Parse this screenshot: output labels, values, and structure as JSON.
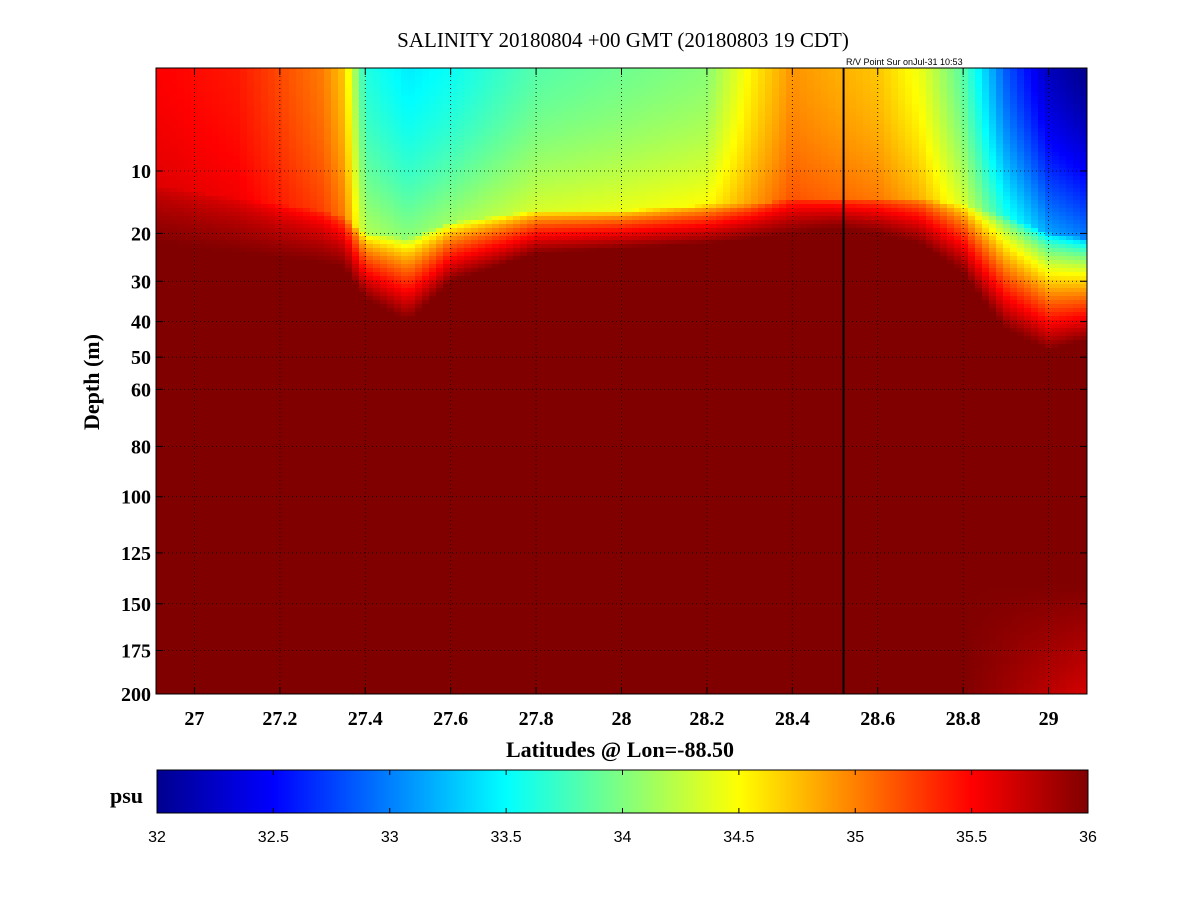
{
  "chart_data": {
    "type": "heatmap",
    "title": "SALINITY 20180804 +00 GMT (20180803 19 CDT)",
    "annotation": "R/V Point Sur onJul-31 10:53",
    "xlabel": "Latitudes @ Lon=-88.50",
    "ylabel": "Depth (m)",
    "xlim": [
      26.91,
      29.09
    ],
    "ylim": [
      200,
      1
    ],
    "y_scale": "sqrt",
    "x_ticks": [
      27,
      27.2,
      27.4,
      27.6,
      27.8,
      28,
      28.2,
      28.4,
      28.6,
      28.8,
      29
    ],
    "x_tick_labels": [
      "27",
      "27.2",
      "27.4",
      "27.6",
      "27.8",
      "28",
      "28.2",
      "28.4",
      "28.6",
      "28.8",
      "29"
    ],
    "y_ticks": [
      10,
      20,
      30,
      40,
      50,
      60,
      80,
      100,
      125,
      150,
      175,
      200
    ],
    "y_tick_labels": [
      "10",
      "20",
      "30",
      "40",
      "50",
      "60",
      "80",
      "100",
      "125",
      "150",
      "175",
      "200"
    ],
    "grid": true,
    "station_line_lat": 28.52,
    "colorbar": {
      "label": "psu",
      "range": [
        32,
        36
      ],
      "ticks": [
        32,
        32.5,
        33,
        33.5,
        34,
        34.5,
        35,
        35.5,
        36
      ],
      "tick_labels": [
        "32",
        "32.5",
        "33",
        "33.5",
        "34",
        "34.5",
        "35",
        "35.5",
        "36"
      ],
      "colormap": "jet"
    },
    "surface_salinity_by_lat": {
      "lat": [
        26.91,
        27.1,
        27.3,
        27.35,
        27.4,
        27.5,
        27.6,
        27.8,
        28.0,
        28.2,
        28.3,
        28.4,
        28.5,
        28.6,
        28.7,
        28.8,
        28.9,
        29.0,
        29.09
      ],
      "surface_psu": [
        35.5,
        35.4,
        35.0,
        34.7,
        33.6,
        33.4,
        33.5,
        33.8,
        33.9,
        34.0,
        34.5,
        34.9,
        34.8,
        34.7,
        34.4,
        33.8,
        32.8,
        32.2,
        32.0
      ],
      "mixed_layer_depth_m": [
        12,
        14,
        16,
        17,
        20,
        21,
        18,
        16,
        16,
        15,
        15,
        14,
        14,
        14,
        14,
        15,
        17,
        20,
        21
      ],
      "transition_bottom_m": [
        22,
        24,
        26,
        27,
        34,
        40,
        30,
        24,
        23,
        22,
        21,
        20,
        19,
        20,
        22,
        28,
        42,
        48,
        45
      ]
    },
    "deep_salinity_psu": 36
  }
}
